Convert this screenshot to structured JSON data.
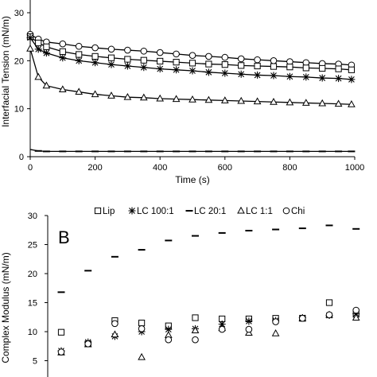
{
  "chart_data": [
    {
      "type": "line",
      "xlabel": "Time (s)",
      "ylabel": "Interfacial Tension (mN/m)",
      "xlim": [
        0,
        1000
      ],
      "ylim": [
        0,
        30
      ],
      "x_ticks": [
        "0",
        "200",
        "400",
        "600",
        "800",
        "1000"
      ],
      "y_ticks": [
        "0",
        "10",
        "20",
        "30"
      ],
      "grid": false,
      "series": [
        {
          "marker": "circle",
          "x": [
            0,
            25,
            50,
            100,
            150,
            200,
            250,
            300,
            350,
            400,
            450,
            500,
            550,
            600,
            650,
            700,
            750,
            800,
            850,
            900,
            950,
            990
          ],
          "y": [
            25.5,
            24.5,
            23.9,
            23.5,
            23.0,
            22.7,
            22.4,
            22.2,
            22.0,
            21.7,
            21.4,
            21.1,
            20.9,
            20.7,
            20.4,
            20.2,
            20.0,
            19.8,
            19.6,
            19.4,
            19.3,
            19.1
          ]
        },
        {
          "marker": "square",
          "x": [
            0,
            25,
            50,
            100,
            150,
            200,
            250,
            300,
            350,
            400,
            450,
            500,
            550,
            600,
            650,
            700,
            750,
            800,
            850,
            900,
            950,
            990
          ],
          "y": [
            25.0,
            23.7,
            22.9,
            21.9,
            21.3,
            20.9,
            20.6,
            20.3,
            20.1,
            19.9,
            19.7,
            19.5,
            19.3,
            19.2,
            19.0,
            18.9,
            18.8,
            18.7,
            18.5,
            18.4,
            18.3,
            18.1
          ]
        },
        {
          "marker": "cross",
          "x": [
            0,
            25,
            50,
            100,
            150,
            200,
            250,
            300,
            350,
            400,
            450,
            500,
            550,
            600,
            650,
            700,
            750,
            800,
            850,
            900,
            950,
            990
          ],
          "y": [
            24.8,
            22.4,
            21.6,
            20.6,
            20.0,
            19.6,
            19.2,
            18.9,
            18.6,
            18.3,
            18.1,
            17.9,
            17.6,
            17.4,
            17.2,
            17.0,
            16.9,
            16.7,
            16.6,
            16.4,
            16.3,
            16.1
          ]
        },
        {
          "marker": "triangle",
          "x": [
            0,
            25,
            50,
            100,
            150,
            200,
            250,
            300,
            350,
            400,
            450,
            500,
            550,
            600,
            650,
            700,
            750,
            800,
            850,
            900,
            950,
            990
          ],
          "y": [
            22.5,
            16.6,
            14.8,
            14.0,
            13.5,
            13.0,
            12.7,
            12.4,
            12.3,
            12.1,
            12.0,
            11.9,
            11.8,
            11.7,
            11.6,
            11.5,
            11.4,
            11.3,
            11.2,
            11.1,
            11.0,
            10.9
          ]
        },
        {
          "marker": "dash",
          "x": [
            0,
            25,
            50,
            100,
            150,
            200,
            250,
            300,
            350,
            400,
            450,
            500,
            550,
            600,
            650,
            700,
            750,
            800,
            850,
            900,
            950,
            990
          ],
          "y": [
            1.5,
            1.2,
            1.1,
            1.1,
            1.1,
            1.1,
            1.1,
            1.1,
            1.1,
            1.1,
            1.1,
            1.1,
            1.1,
            1.1,
            1.1,
            1.1,
            1.1,
            1.1,
            1.1,
            1.1,
            1.1,
            1.1
          ]
        }
      ]
    },
    {
      "type": "scatter",
      "panel_label": "B",
      "ylabel": "Complex Modulus (mN/m)",
      "ylim": [
        0,
        30
      ],
      "y_ticks": [
        "5",
        "10",
        "15",
        "20",
        "25",
        "30"
      ],
      "grid": false,
      "legend_position": "top",
      "n_points": 12,
      "series": [
        {
          "name": "Lip",
          "marker": "square",
          "values": [
            9.9,
            7.9,
            11.9,
            11.5,
            11.0,
            12.4,
            12.2,
            12.2,
            12.3,
            12.3,
            15.0,
            13.0
          ]
        },
        {
          "name": "LC 100:1",
          "marker": "cross",
          "values": [
            6.7,
            8.2,
            9.2,
            10.0,
            10.4,
            10.5,
            11.3,
            11.8,
            11.9,
            12.4,
            12.8,
            13.1
          ]
        },
        {
          "name": "LC 20:1",
          "marker": "dash",
          "values": [
            16.8,
            20.5,
            22.9,
            24.1,
            25.7,
            26.5,
            27.0,
            27.4,
            27.6,
            27.8,
            28.3,
            27.7
          ]
        },
        {
          "name": "LC 1:1",
          "marker": "triangle",
          "values": [
            6.4,
            7.8,
            9.5,
            5.6,
            9.4,
            10.2,
            10.6,
            9.8,
            9.7,
            12.3,
            12.9,
            12.4
          ]
        },
        {
          "name": "Chi",
          "marker": "circle",
          "values": [
            6.5,
            7.9,
            11.4,
            10.5,
            8.6,
            8.6,
            10.4,
            10.4,
            11.7,
            12.3,
            12.9,
            13.7
          ]
        }
      ]
    }
  ]
}
